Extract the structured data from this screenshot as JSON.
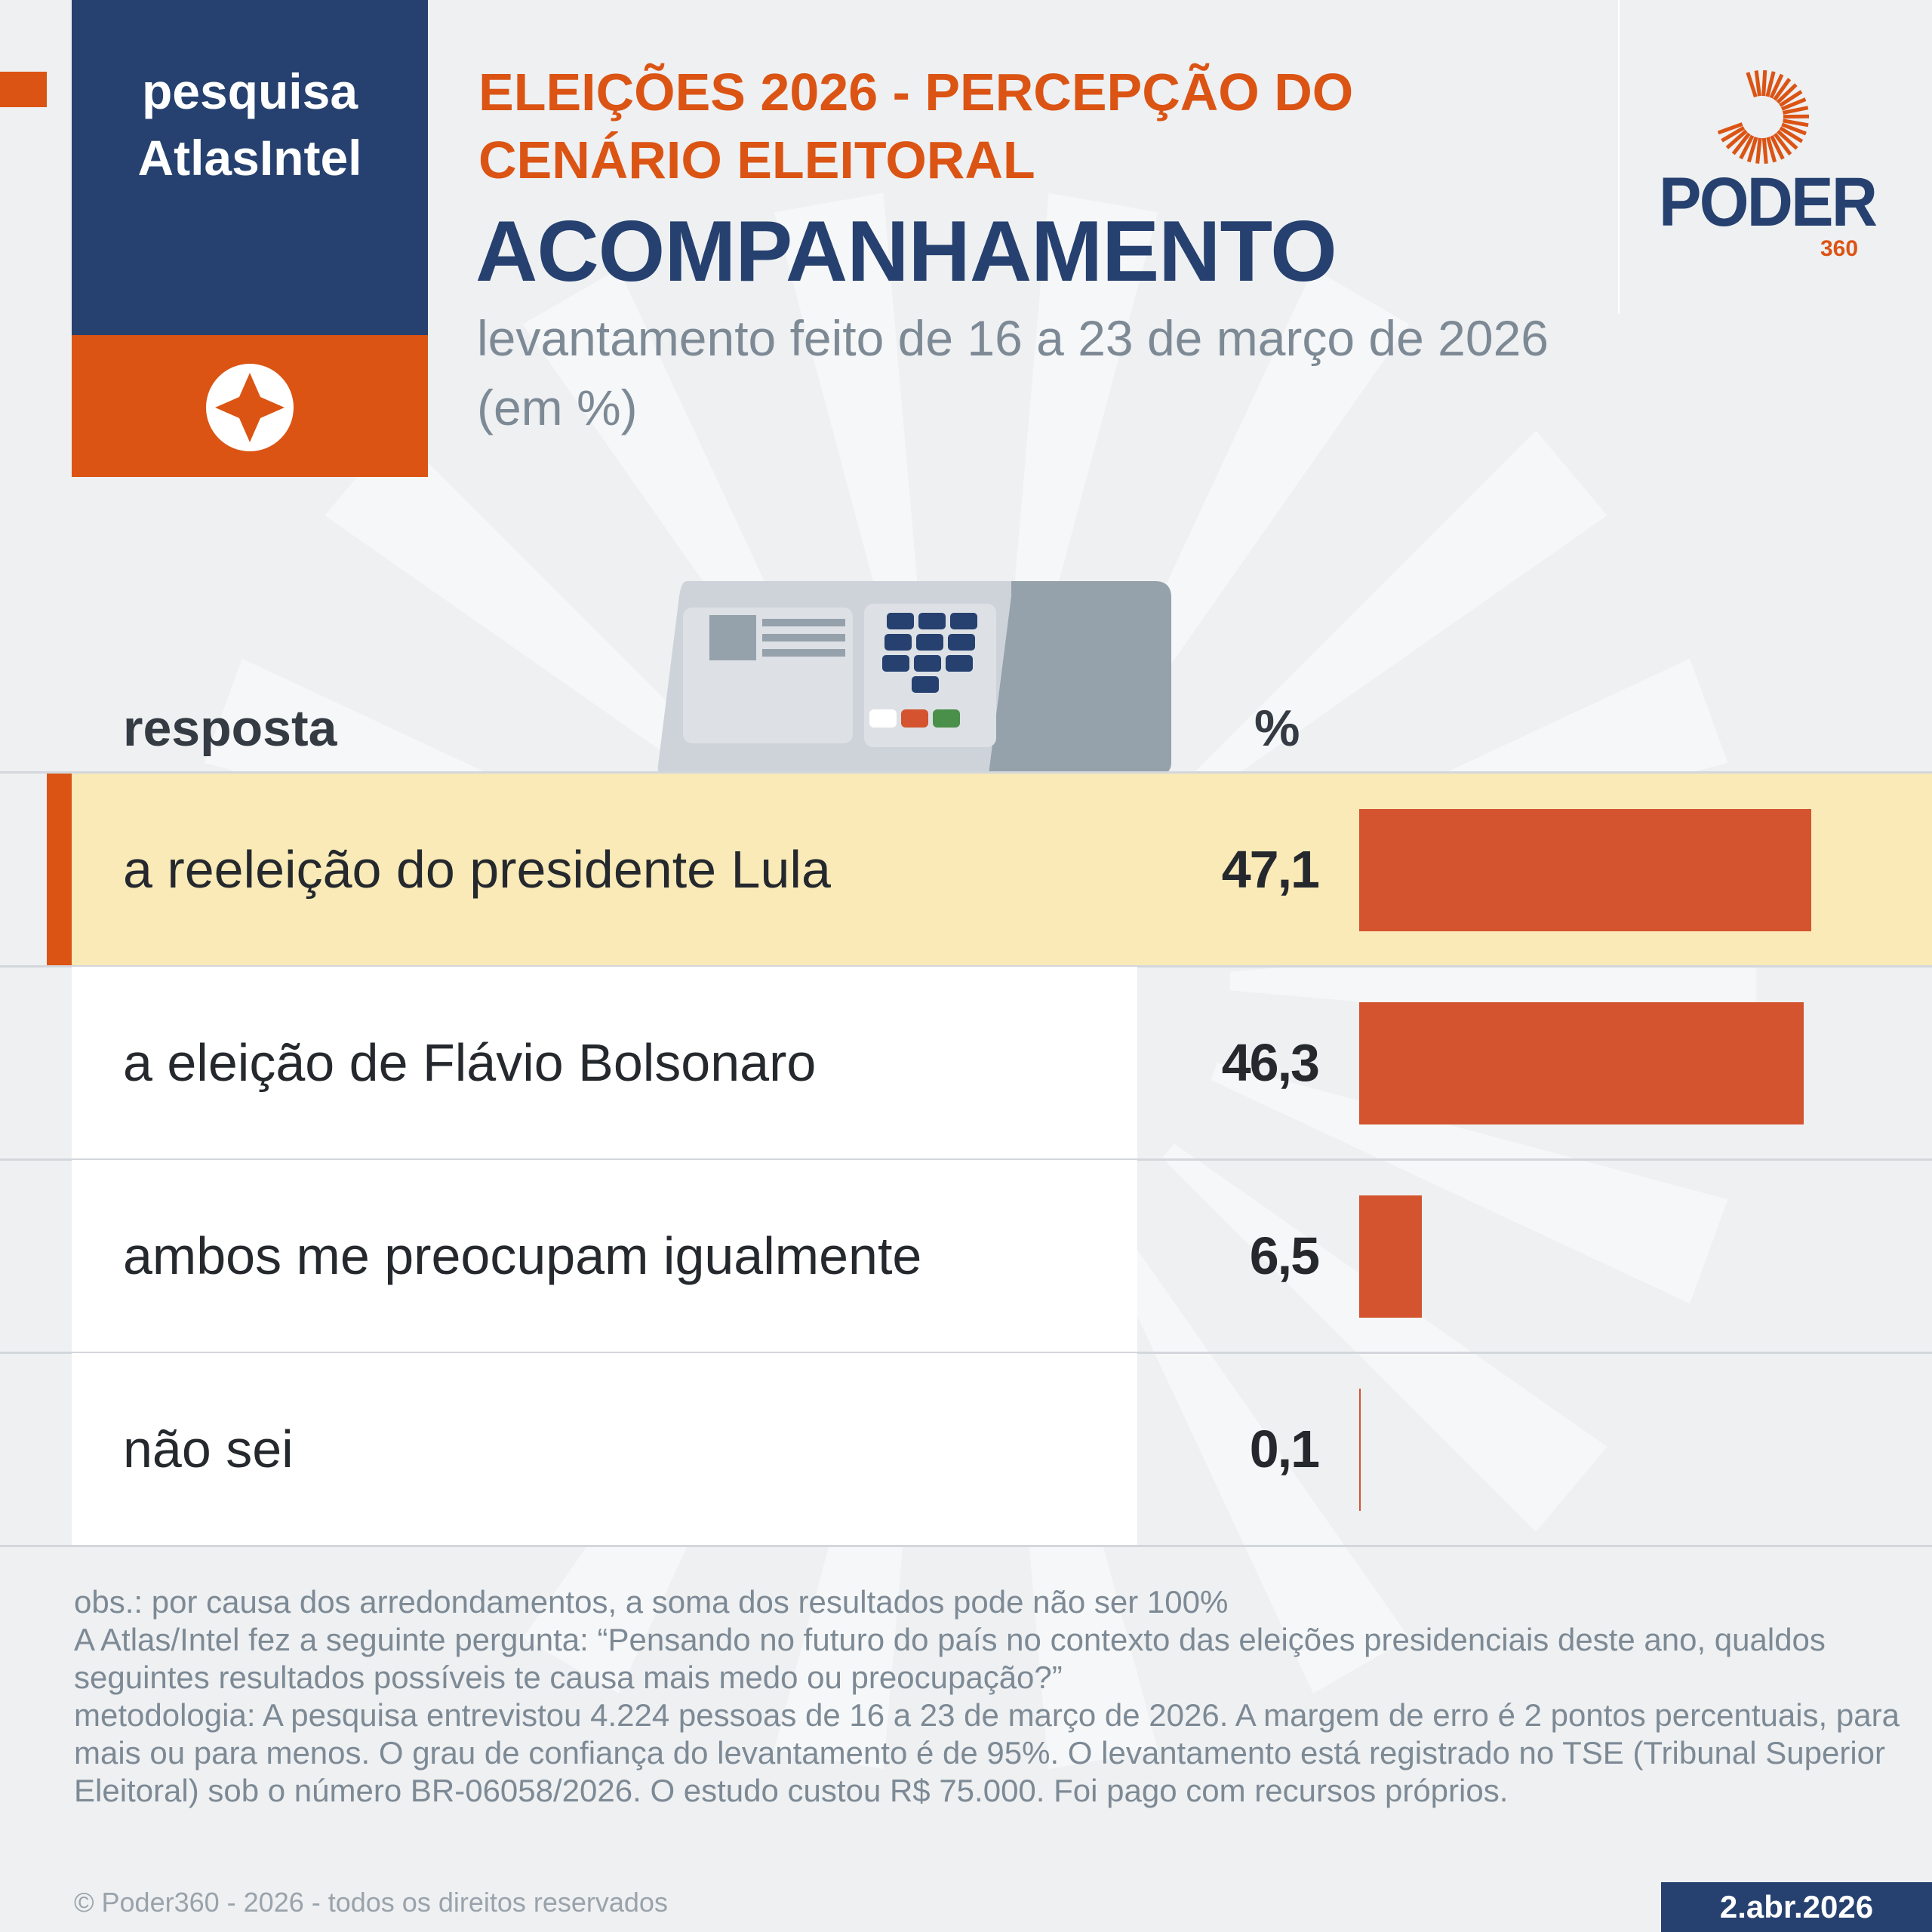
{
  "brand": {
    "line1": "pesquisa",
    "line2": "AtlasIntel"
  },
  "header": {
    "kicker_line1": "ELEIÇÕES 2026 - PERCEPÇÃO DO",
    "kicker_line2": "CENÁRIO ELEITORAL",
    "title": "ACOMPANHAMENTO",
    "subtitle": "levantamento feito de 16 a 23 de março de 2026 (em %)"
  },
  "logo": {
    "name": "PODER",
    "number": "360"
  },
  "colors": {
    "blue": "#26416f",
    "orange": "#db5414",
    "bar": "#d3542e",
    "highlight": "#f9eab7"
  },
  "chart_data": {
    "type": "bar",
    "orientation": "horizontal",
    "column_headers": {
      "category": "resposta",
      "value": "%"
    },
    "categories": [
      "a reeleição do presidente Lula",
      "a eleição de Flávio Bolsonaro",
      "ambos me preocupam igualmente",
      "não sei"
    ],
    "values": [
      47.1,
      46.3,
      6.5,
      0.1
    ],
    "value_labels": [
      "47,1",
      "46,3",
      "6,5",
      "0,1"
    ],
    "highlighted": "a reeleição do presidente Lula"
  },
  "footer": {
    "obs": "obs.: por causa dos arredondamentos, a soma dos resultados pode não ser 100%",
    "question": "A Atlas/Intel fez a seguinte pergunta: “Pensando no futuro do país no contexto das eleições presidenciais deste ano, qualdos seguintes resultados possíveis te causa mais medo ou preocupação?”",
    "method": "metodologia: A pesquisa entrevistou 4.224 pessoas de 16 a 23 de março de 2026. A margem de erro é 2 pontos percentuais, para mais ou para menos. O grau de confiança do levantamento é de 95%. O levantamento está registrado no TSE (Tribunal Superior Eleitoral) sob o número BR-06058/2026. O estudo custou R$ 75.000. Foi pago com recursos próprios.",
    "copyright": "© Poder360 - 2026 - todos os direitos reservados",
    "date": "2.abr.2026"
  }
}
